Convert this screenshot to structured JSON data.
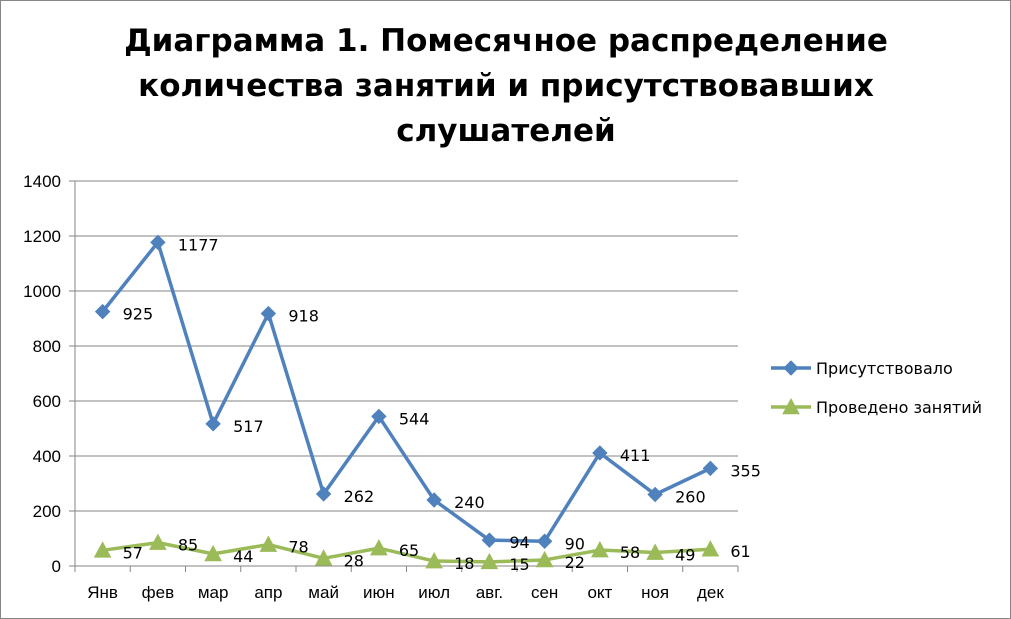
{
  "chart_data": {
    "type": "line",
    "title": "Диаграмма 1. Помесячное распределение\nколичества занятий и присутствовавших\nслушателей",
    "categories": [
      "Янв",
      "фев",
      "мар",
      "апр",
      "май",
      "июн",
      "июл",
      "авг.",
      "сен",
      "окт",
      "ноя",
      "дек"
    ],
    "ylim": [
      0,
      1400
    ],
    "yticks": [
      0,
      200,
      400,
      600,
      800,
      1000,
      1200,
      1400
    ],
    "grid": true,
    "legend": "right",
    "series": [
      {
        "name": "Присутствовало",
        "marker": "diamond",
        "color": "#4F81BD",
        "values": [
          925,
          1177,
          517,
          918,
          262,
          544,
          240,
          94,
          90,
          411,
          260,
          355
        ]
      },
      {
        "name": "Проведено занятий",
        "marker": "triangle",
        "color": "#9BBB59",
        "values": [
          57,
          85,
          44,
          78,
          28,
          65,
          18,
          15,
          22,
          58,
          49,
          61
        ]
      }
    ]
  }
}
